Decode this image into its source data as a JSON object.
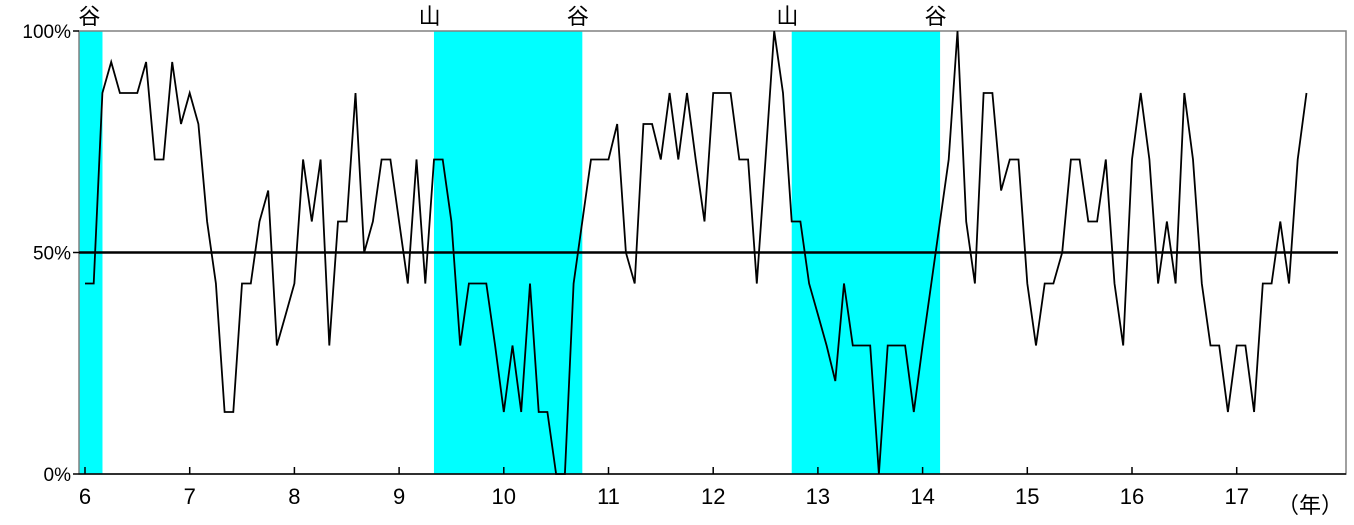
{
  "chart_data": {
    "type": "line",
    "title": "",
    "xlabel": "（年）",
    "ylabel": "",
    "x_ticks": [
      "6",
      "7",
      "8",
      "9",
      "10",
      "11",
      "12",
      "13",
      "14",
      "15",
      "16",
      "17"
    ],
    "y_ticks": [
      "0%",
      "50%",
      "100%"
    ],
    "xlim": [
      6.0,
      18.0
    ],
    "ylim": [
      0,
      100
    ],
    "reference_line": 50,
    "grid": false,
    "colors": {
      "recession_band": "#00ffff",
      "line": "#000000",
      "frame": "#808080"
    },
    "recession_bands": [
      {
        "start": 5.5,
        "end": 6.167
      },
      {
        "start": 9.333,
        "end": 10.75
      },
      {
        "start": 12.75,
        "end": 14.167
      }
    ],
    "turning_points": [
      {
        "label": "谷",
        "x": 6.042
      },
      {
        "label": "山",
        "x": 9.292
      },
      {
        "label": "谷",
        "x": 10.708
      },
      {
        "label": "山",
        "x": 12.708
      },
      {
        "label": "谷",
        "x": 14.125
      }
    ],
    "series": [
      {
        "start_x": 6.0,
        "step": 0.08333,
        "values": [
          43,
          43,
          86,
          93,
          86,
          86,
          86,
          93,
          71,
          71,
          93,
          79,
          86,
          79,
          57,
          43,
          14,
          14,
          43,
          43,
          57,
          64,
          29,
          36,
          43,
          71,
          57,
          71,
          29,
          57,
          57,
          86,
          50,
          57,
          71,
          71,
          57,
          43,
          71,
          43,
          71,
          71,
          57,
          29,
          43,
          43,
          43,
          29,
          14,
          29,
          14,
          43,
          14,
          14,
          0,
          0,
          43,
          57,
          71,
          71,
          71,
          79,
          50,
          43,
          79,
          79,
          71,
          86,
          71,
          86,
          71,
          57,
          86,
          86,
          86,
          71,
          71,
          43,
          71,
          100,
          86,
          57,
          57,
          43,
          36,
          29,
          21,
          43,
          29,
          29,
          29,
          0,
          29,
          29,
          29,
          14,
          29,
          43,
          57,
          71,
          100,
          57,
          43,
          86,
          86,
          64,
          71,
          71,
          43,
          29,
          43,
          43,
          50,
          71,
          71,
          57,
          57,
          71,
          43,
          29,
          71,
          86,
          71,
          43,
          57,
          43,
          86,
          71,
          43,
          29,
          29,
          14,
          29,
          29,
          14,
          43,
          43,
          57,
          43,
          71,
          86
        ]
      }
    ]
  }
}
